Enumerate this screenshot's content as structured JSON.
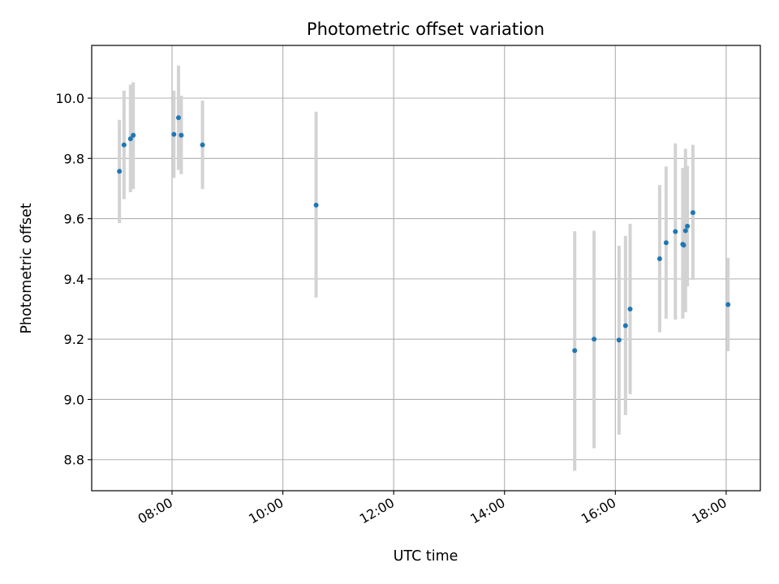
{
  "chart_data": {
    "type": "scatter",
    "title": "Photometric offset variation",
    "xlabel": "UTC time",
    "ylabel": "Photometric offset",
    "x_tick_labels": [
      "08:00",
      "10:00",
      "12:00",
      "14:00",
      "16:00",
      "18:00"
    ],
    "x_ticks": [
      "08:00",
      "10:00",
      "12:00",
      "14:00",
      "16:00",
      "18:00"
    ],
    "y_ticks": [
      8.8,
      9.0,
      9.2,
      9.4,
      9.6,
      9.8,
      10.0
    ],
    "xlim": [
      "06:33",
      "18:37"
    ],
    "ylim": [
      8.697,
      10.175
    ],
    "grid": true,
    "colors": {
      "points": "#1f77b4",
      "errorbars": "#d3d3d3",
      "grid": "#b0b0b0"
    },
    "series": [
      {
        "points": [
          {
            "x": "07:03",
            "y": 9.757,
            "err_low": 9.585,
            "err_high": 9.928
          },
          {
            "x": "07:08",
            "y": 9.845,
            "err_low": 9.665,
            "err_high": 10.025
          },
          {
            "x": "07:15",
            "y": 9.865,
            "err_low": 9.688,
            "err_high": 10.045
          },
          {
            "x": "07:18",
            "y": 9.877,
            "err_low": 9.698,
            "err_high": 10.053
          },
          {
            "x": "08:02",
            "y": 9.88,
            "err_low": 9.735,
            "err_high": 10.025
          },
          {
            "x": "08:07",
            "y": 9.935,
            "err_low": 9.762,
            "err_high": 10.108
          },
          {
            "x": "08:10",
            "y": 9.877,
            "err_low": 9.748,
            "err_high": 10.008
          },
          {
            "x": "08:33",
            "y": 9.845,
            "err_low": 9.698,
            "err_high": 9.992
          },
          {
            "x": "10:36",
            "y": 9.645,
            "err_low": 9.338,
            "err_high": 9.955
          },
          {
            "x": "15:16",
            "y": 9.162,
            "err_low": 8.763,
            "err_high": 9.558
          },
          {
            "x": "15:37",
            "y": 9.2,
            "err_low": 8.838,
            "err_high": 9.56
          },
          {
            "x": "16:04",
            "y": 9.197,
            "err_low": 8.883,
            "err_high": 9.51
          },
          {
            "x": "16:11",
            "y": 9.245,
            "err_low": 8.948,
            "err_high": 9.543
          },
          {
            "x": "16:16",
            "y": 9.3,
            "err_low": 9.017,
            "err_high": 9.583
          },
          {
            "x": "16:48",
            "y": 9.467,
            "err_low": 9.223,
            "err_high": 9.712
          },
          {
            "x": "16:55",
            "y": 9.52,
            "err_low": 9.268,
            "err_high": 9.773
          },
          {
            "x": "17:05",
            "y": 9.557,
            "err_low": 9.265,
            "err_high": 9.85
          },
          {
            "x": "17:13",
            "y": 9.515,
            "err_low": 9.268,
            "err_high": 9.768
          },
          {
            "x": "17:14",
            "y": 9.512,
            "err_low": 9.29,
            "err_high": 9.735
          },
          {
            "x": "17:16",
            "y": 9.56,
            "err_low": 9.29,
            "err_high": 9.832
          },
          {
            "x": "17:18",
            "y": 9.575,
            "err_low": 9.375,
            "err_high": 9.775
          },
          {
            "x": "17:24",
            "y": 9.62,
            "err_low": 9.397,
            "err_high": 9.845
          },
          {
            "x": "18:02",
            "y": 9.315,
            "err_low": 9.16,
            "err_high": 9.47
          }
        ]
      }
    ]
  }
}
